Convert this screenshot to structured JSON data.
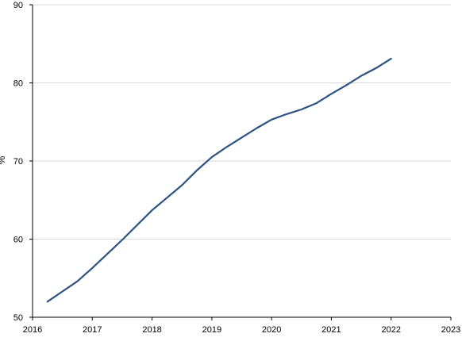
{
  "chart_data": {
    "type": "line",
    "title": "",
    "xlabel": "",
    "ylabel": "%",
    "xlim": [
      2016,
      2023
    ],
    "ylim": [
      50,
      90
    ],
    "x_ticks": [
      "2016",
      "2017",
      "2018",
      "2019",
      "2020",
      "2021",
      "2022",
      "2023"
    ],
    "y_ticks": [
      "50",
      "60",
      "70",
      "80",
      "90"
    ],
    "grid": "horizontal",
    "legend": "none",
    "series": [
      {
        "color": "#2c5282",
        "points": [
          {
            "x": 2016.25,
            "y": 52.0
          },
          {
            "x": 2016.5,
            "y": 53.3
          },
          {
            "x": 2016.75,
            "y": 54.6
          },
          {
            "x": 2017.0,
            "y": 56.3
          },
          {
            "x": 2017.25,
            "y": 58.1
          },
          {
            "x": 2017.5,
            "y": 59.9
          },
          {
            "x": 2017.75,
            "y": 61.8
          },
          {
            "x": 2018.0,
            "y": 63.7
          },
          {
            "x": 2018.25,
            "y": 65.3
          },
          {
            "x": 2018.5,
            "y": 66.9
          },
          {
            "x": 2018.75,
            "y": 68.8
          },
          {
            "x": 2019.0,
            "y": 70.5
          },
          {
            "x": 2019.25,
            "y": 71.8
          },
          {
            "x": 2019.5,
            "y": 73.0
          },
          {
            "x": 2019.75,
            "y": 74.2
          },
          {
            "x": 2020.0,
            "y": 75.3
          },
          {
            "x": 2020.25,
            "y": 76.0
          },
          {
            "x": 2020.5,
            "y": 76.6
          },
          {
            "x": 2020.75,
            "y": 77.4
          },
          {
            "x": 2021.0,
            "y": 78.6
          },
          {
            "x": 2021.25,
            "y": 79.7
          },
          {
            "x": 2021.5,
            "y": 80.9
          },
          {
            "x": 2021.75,
            "y": 81.9
          },
          {
            "x": 2022.0,
            "y": 83.1
          }
        ]
      }
    ]
  },
  "colors": {
    "axis": "#000000",
    "grid": "#d9d9d9",
    "line": "#2c5282"
  }
}
